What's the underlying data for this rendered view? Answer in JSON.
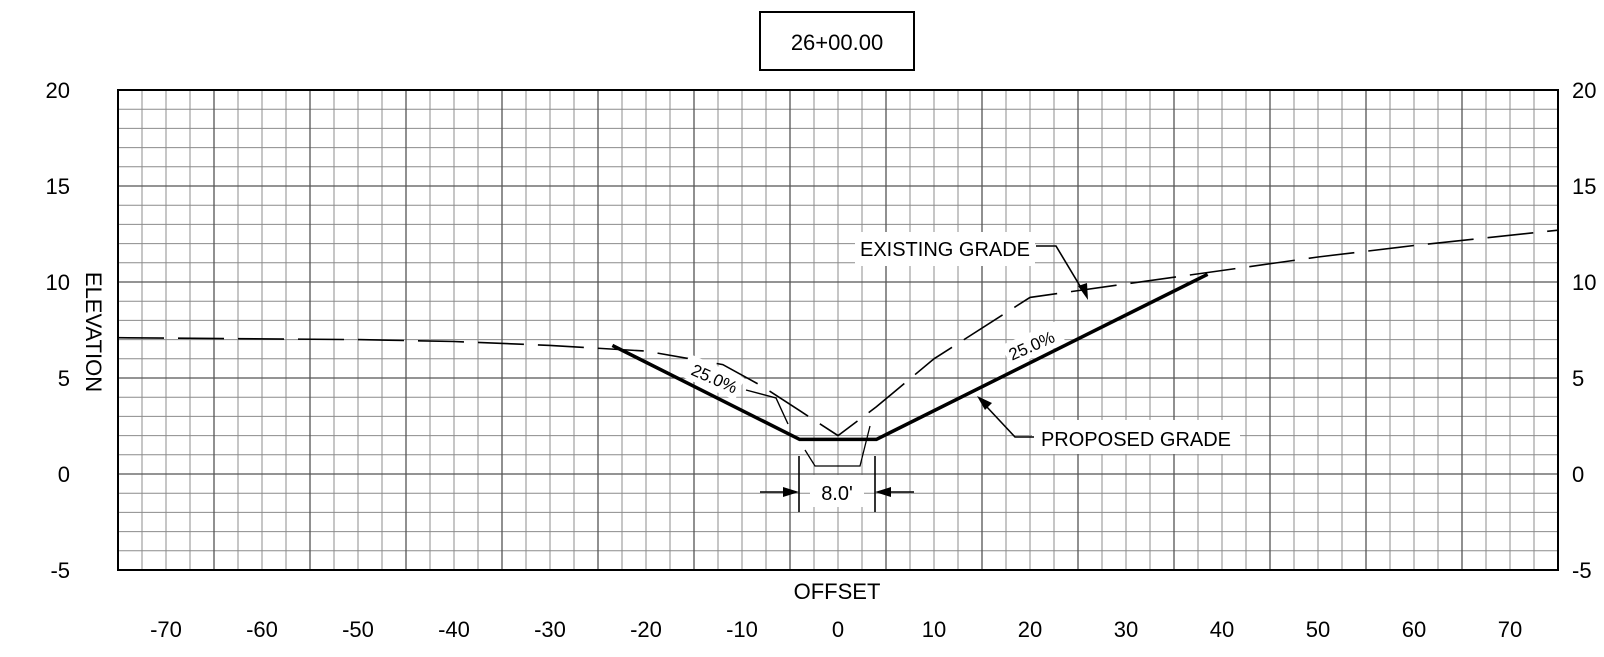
{
  "chart_data": {
    "type": "line",
    "title": "26+00.00",
    "xlabel": "OFFSET",
    "ylabel": "ELEVATION",
    "xlim": [
      -75,
      75
    ],
    "ylim": [
      -5,
      20
    ],
    "x_ticks": [
      -70,
      -60,
      -50,
      -40,
      -30,
      -20,
      -10,
      0,
      10,
      20,
      30,
      40,
      50,
      60,
      70
    ],
    "y_ticks": [
      -5,
      0,
      5,
      10,
      15,
      20
    ],
    "grid": true,
    "minor_grid_step_x": 2.5,
    "minor_grid_step_y": 1,
    "series": [
      {
        "name": "EXISTING GRADE",
        "style": "dashed",
        "x": [
          -75,
          -50,
          -40,
          -30,
          -20,
          -12,
          -8,
          -4,
          0,
          4,
          10,
          20,
          30,
          40,
          50,
          60,
          75
        ],
        "y": [
          7.1,
          7.0,
          6.9,
          6.7,
          6.4,
          5.7,
          4.6,
          3.3,
          2.0,
          3.5,
          6.0,
          9.2,
          9.9,
          10.6,
          11.3,
          11.9,
          12.7
        ]
      },
      {
        "name": "PROPOSED GRADE",
        "style": "solid",
        "x": [
          -23.5,
          -4,
          4,
          38.5
        ],
        "y": [
          6.7,
          1.8,
          1.8,
          10.4
        ]
      }
    ],
    "annotations": [
      {
        "text": "EXISTING GRADE",
        "type": "callout"
      },
      {
        "text": "PROPOSED GRADE",
        "type": "callout"
      },
      {
        "text": "25.0%",
        "type": "slope-left"
      },
      {
        "text": "25.0%",
        "type": "slope-right"
      },
      {
        "text": "8.0'",
        "type": "dimension"
      }
    ]
  }
}
